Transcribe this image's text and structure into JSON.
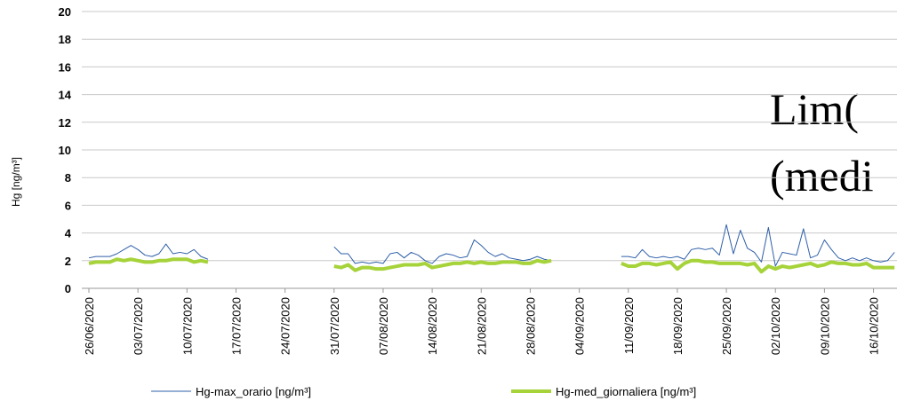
{
  "chart_data": {
    "type": "line",
    "y_label": "Hg [ng/m³]",
    "annotation": [
      "Lim(",
      "(medi"
    ],
    "categories": [
      "26/06/2020",
      null,
      null,
      null,
      null,
      null,
      null,
      "03/07/2020",
      null,
      null,
      null,
      null,
      null,
      null,
      "10/07/2020",
      null,
      null,
      null,
      null,
      null,
      null,
      "17/07/2020",
      null,
      null,
      null,
      null,
      null,
      null,
      "24/07/2020",
      null,
      null,
      null,
      null,
      null,
      null,
      "31/07/2020",
      null,
      null,
      null,
      null,
      null,
      null,
      "07/08/2020",
      null,
      null,
      null,
      null,
      null,
      null,
      "14/08/2020",
      null,
      null,
      null,
      null,
      null,
      null,
      "21/08/2020",
      null,
      null,
      null,
      null,
      null,
      null,
      "28/08/2020",
      null,
      null,
      null,
      null,
      null,
      null,
      "04/09/2020",
      null,
      null,
      null,
      null,
      null,
      null,
      "11/09/2020",
      null,
      null,
      null,
      null,
      null,
      null,
      "18/09/2020",
      null,
      null,
      null,
      null,
      null,
      null,
      "25/09/2020",
      null,
      null,
      null,
      null,
      null,
      null,
      "02/10/2020",
      null,
      null,
      null,
      null,
      null,
      null,
      "09/10/2020",
      null,
      null,
      null,
      null,
      null,
      null,
      "16/10/2020",
      null,
      null,
      null
    ],
    "series": [
      {
        "name": "Hg-max_orario [ng/m³]",
        "color": "#2e5fa8",
        "width": 1,
        "values": [
          2.2,
          2.3,
          2.3,
          2.3,
          2.5,
          2.8,
          3.1,
          2.8,
          2.4,
          2.3,
          2.5,
          3.2,
          2.5,
          2.6,
          2.5,
          2.8,
          2.3,
          2.1,
          null,
          null,
          null,
          null,
          null,
          null,
          null,
          null,
          null,
          null,
          null,
          null,
          null,
          null,
          null,
          null,
          null,
          3.0,
          2.5,
          2.5,
          1.8,
          1.9,
          1.8,
          1.9,
          1.8,
          2.5,
          2.6,
          2.2,
          2.6,
          2.4,
          2.0,
          1.8,
          2.3,
          2.5,
          2.4,
          2.2,
          2.3,
          3.5,
          3.1,
          2.6,
          2.3,
          2.5,
          2.2,
          2.1,
          2.0,
          2.1,
          2.3,
          2.1,
          2.0,
          null,
          null,
          null,
          null,
          null,
          null,
          null,
          null,
          null,
          2.3,
          2.3,
          2.2,
          2.8,
          2.3,
          2.2,
          2.3,
          2.2,
          2.3,
          2.1,
          2.8,
          2.9,
          2.8,
          2.9,
          2.4,
          4.6,
          2.5,
          4.2,
          2.9,
          2.6,
          1.9,
          4.4,
          1.6,
          2.6,
          2.5,
          2.4,
          4.3,
          2.2,
          2.4,
          3.5,
          2.8,
          2.2,
          2.0,
          2.2,
          2.0,
          2.2,
          2.0,
          1.9,
          2.0,
          2.6
        ]
      },
      {
        "name": "Hg-med_giornaliera [ng/m³]",
        "color": "#a6d33a",
        "width": 4,
        "values": [
          1.8,
          1.9,
          1.9,
          1.9,
          2.1,
          2.0,
          2.1,
          2.0,
          1.9,
          1.9,
          2.0,
          2.0,
          2.1,
          2.1,
          2.1,
          1.9,
          2.0,
          1.9,
          null,
          null,
          null,
          null,
          null,
          null,
          null,
          null,
          null,
          null,
          null,
          null,
          null,
          null,
          null,
          null,
          null,
          1.6,
          1.5,
          1.7,
          1.3,
          1.5,
          1.5,
          1.4,
          1.4,
          1.5,
          1.6,
          1.7,
          1.7,
          1.7,
          1.8,
          1.5,
          1.6,
          1.7,
          1.8,
          1.8,
          1.9,
          1.8,
          1.9,
          1.8,
          1.8,
          1.9,
          1.9,
          1.9,
          1.8,
          1.8,
          2.0,
          1.9,
          2.0,
          null,
          null,
          null,
          null,
          null,
          null,
          null,
          null,
          null,
          1.8,
          1.6,
          1.6,
          1.8,
          1.8,
          1.7,
          1.8,
          1.9,
          1.4,
          1.8,
          2.0,
          2.0,
          1.9,
          1.9,
          1.8,
          1.8,
          1.8,
          1.8,
          1.7,
          1.8,
          1.2,
          1.6,
          1.4,
          1.6,
          1.5,
          1.6,
          1.7,
          1.8,
          1.6,
          1.7,
          1.9,
          1.8,
          1.8,
          1.7,
          1.7,
          1.8,
          1.5,
          1.5,
          1.5,
          1.5
        ]
      }
    ],
    "ylim": [
      0,
      20
    ],
    "yticks": [
      0,
      2,
      4,
      6,
      8,
      10,
      12,
      14,
      16,
      18,
      20
    ],
    "grid": true
  }
}
